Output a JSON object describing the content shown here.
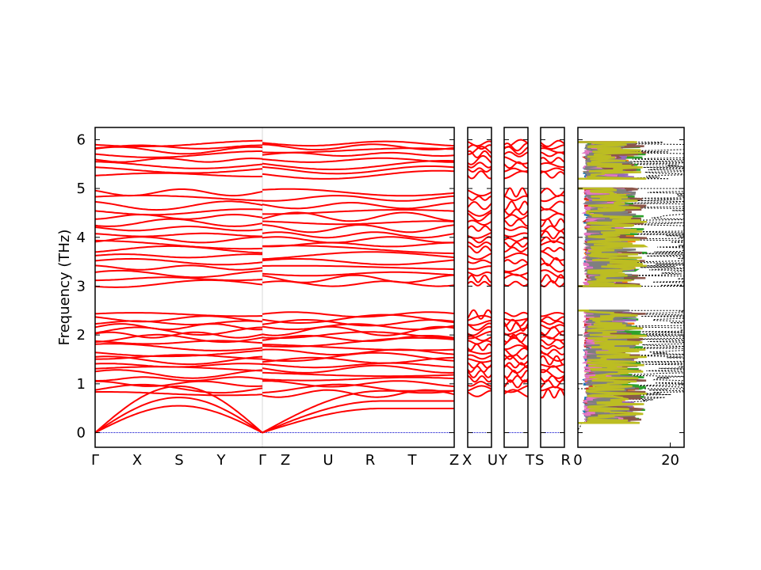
{
  "chart_data": {
    "type": "line",
    "title": "",
    "ylabel": "Frequency (THz)",
    "ylim": [
      -0.3,
      6.25
    ],
    "y_ticks": [
      "0",
      "1",
      "2",
      "3",
      "4",
      "5",
      "6"
    ],
    "y_tick_values": [
      0,
      1,
      2,
      3,
      4,
      5,
      6
    ],
    "grid": false,
    "band_color": "#ff0000",
    "zero_line_color": "#0000cc",
    "panels": [
      {
        "name": "band-structure-main",
        "xlabels": [
          "Γ",
          "X",
          "S",
          "Y",
          "Γ",
          "Z",
          "U",
          "R",
          "T",
          "Z"
        ],
        "segment_break_after": 4
      },
      {
        "name": "band-structure-xu",
        "xlabels": [
          "X",
          "U"
        ]
      },
      {
        "name": "band-structure-yt",
        "xlabels": [
          "Y",
          "T"
        ]
      },
      {
        "name": "band-structure-sr",
        "xlabels": [
          "S",
          "R"
        ]
      }
    ],
    "band_groups": {
      "acoustic_and_low": {
        "y_range": [
          0,
          2.5
        ],
        "flat_levels": [
          2.42,
          2.33,
          2.25,
          2.17,
          2.08,
          2.0,
          1.93,
          1.85,
          1.75,
          1.65,
          1.55,
          1.48,
          1.38,
          1.3,
          1.2,
          1.1,
          1.0,
          0.9,
          0.8
        ],
        "acoustic": [
          {
            "gamma": 0,
            "peak": 0.95
          },
          {
            "gamma": 0,
            "peak": 0.72
          },
          {
            "gamma": 0,
            "peak": 0.55
          }
        ]
      },
      "middle": {
        "y_range": [
          3.0,
          5.0
        ],
        "flat_levels": [
          4.92,
          4.8,
          4.65,
          4.52,
          4.42,
          4.3,
          4.18,
          4.05,
          3.95,
          3.85,
          3.75,
          3.62,
          3.5,
          3.38,
          3.25,
          3.15,
          3.05
        ]
      },
      "upper": {
        "y_range": [
          5.2,
          5.95
        ],
        "flat_levels": [
          5.92,
          5.85,
          5.78,
          5.7,
          5.58,
          5.48,
          5.38,
          5.28
        ]
      }
    },
    "dos": {
      "xlim": [
        0,
        23
      ],
      "x_ticks": [
        "0",
        "20"
      ],
      "x_tick_values": [
        0,
        20
      ],
      "total_style": "dotted",
      "total_color": "#000000",
      "partial_colors": [
        "#1f77b4",
        "#ff7f0e",
        "#2ca02c",
        "#d62728",
        "#9467bd",
        "#8c564b",
        "#e377c2",
        "#7f7f7f",
        "#bcbd22"
      ],
      "bands": [
        {
          "from": 0.0,
          "to": 2.5
        },
        {
          "from": 3.0,
          "to": 5.0
        },
        {
          "from": 5.2,
          "to": 5.95
        }
      ]
    }
  }
}
